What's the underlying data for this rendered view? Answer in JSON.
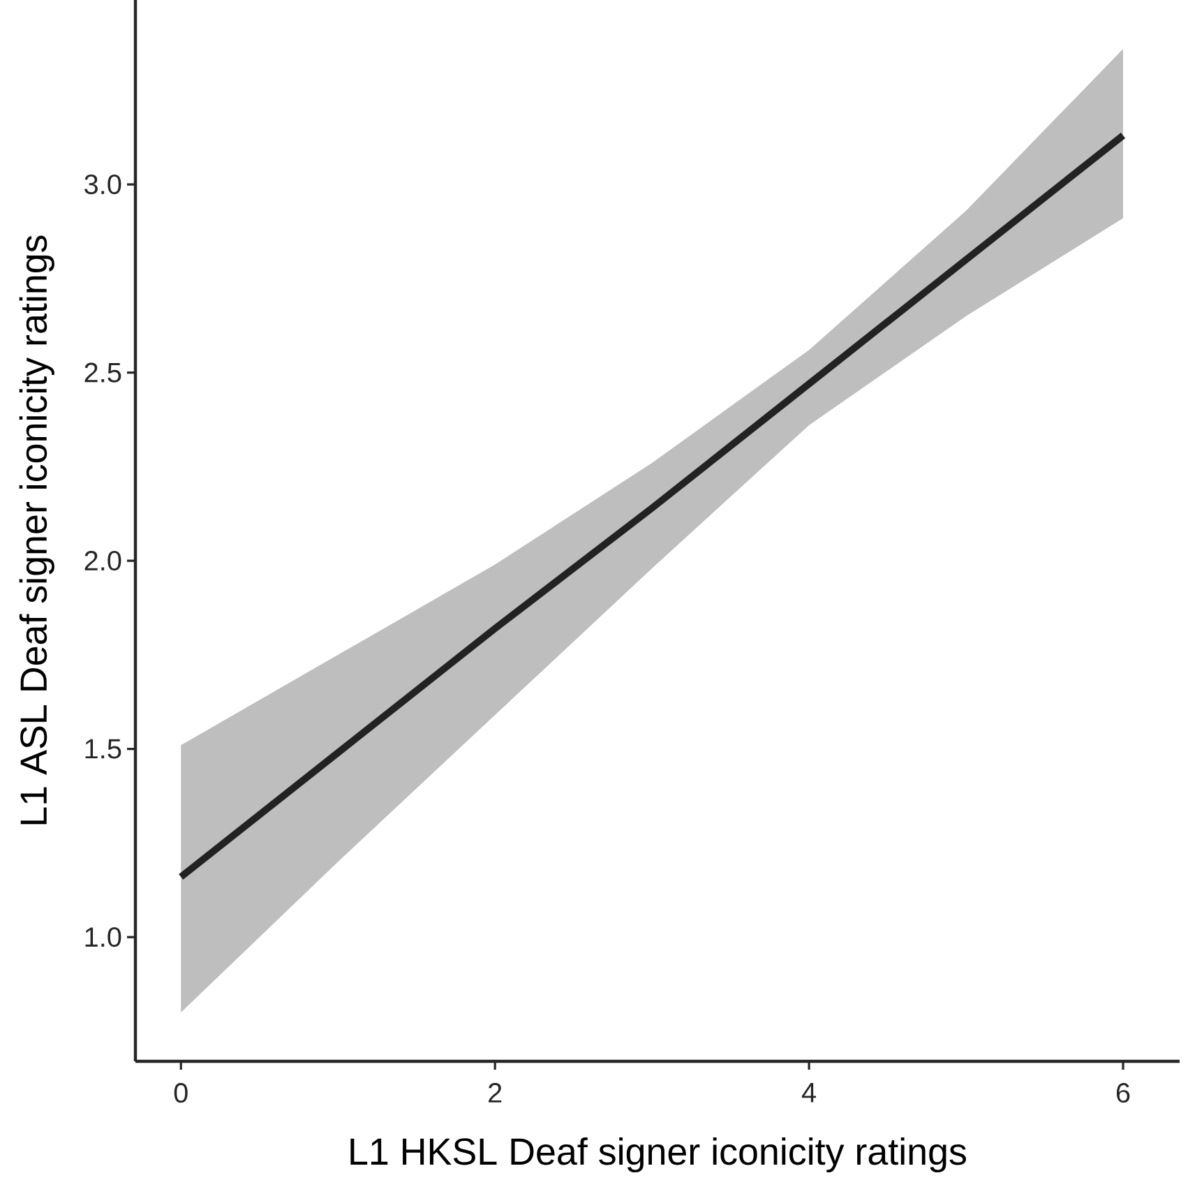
{
  "chart_data": {
    "type": "line",
    "xlabel": "L1 HKSL Deaf signer iconicity ratings",
    "ylabel": "L1 ASL Deaf signer iconicity ratings",
    "x": [
      0,
      1,
      2,
      3,
      4,
      5,
      6
    ],
    "series": [
      {
        "color": "#222222",
        "values": [
          1.16,
          1.49,
          1.82,
          2.14,
          2.47,
          2.8,
          3.13
        ],
        "lower": [
          0.8,
          1.2,
          1.59,
          1.98,
          2.36,
          2.65,
          2.91
        ],
        "upper": [
          1.51,
          1.75,
          1.99,
          2.26,
          2.56,
          2.93,
          3.36
        ]
      }
    ],
    "xlim": [
      -0.29,
      6.36
    ],
    "ylim": [
      0.67,
      3.49
    ],
    "xticks": [
      0,
      2,
      4,
      6
    ],
    "yticks": [
      {
        "value": 1,
        "label": "1.0"
      },
      {
        "value": 1.5,
        "label": "1.5"
      },
      {
        "value": 2,
        "label": "2.0"
      },
      {
        "value": 2.5,
        "label": "2.5"
      },
      {
        "value": 3,
        "label": "3.0"
      }
    ],
    "grid": false,
    "marker": "none",
    "line_style": "solid"
  }
}
